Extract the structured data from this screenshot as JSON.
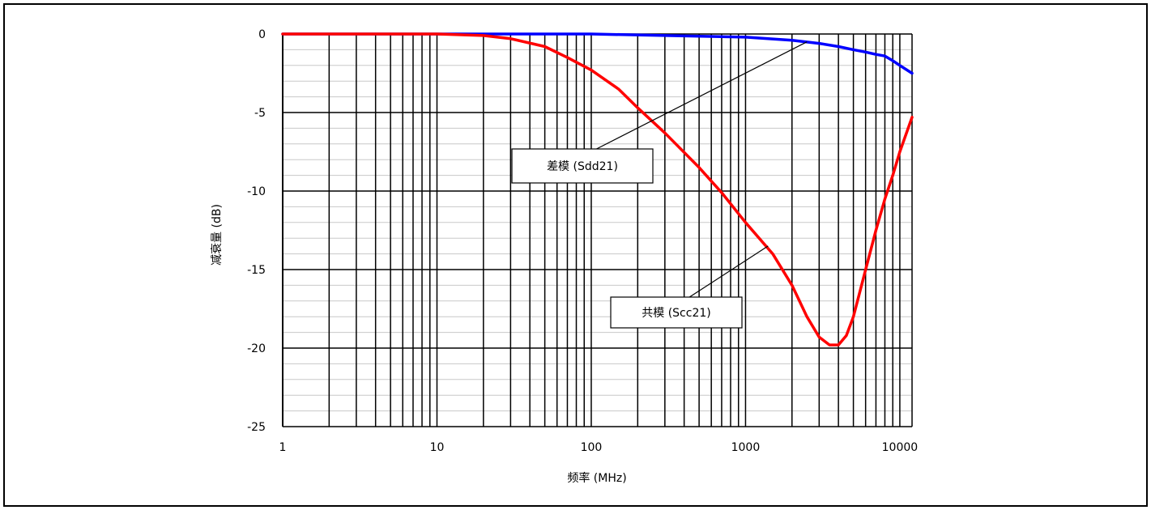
{
  "chart_data": {
    "type": "line",
    "xlabel": "频率 (MHz)",
    "ylabel": "减衰量 (dB)",
    "x_scale": "log",
    "xlim": [
      1,
      12000
    ],
    "ylim": [
      -25,
      0
    ],
    "x_tick_labels": [
      "1",
      "10",
      "100",
      "1000",
      "10000"
    ],
    "y_tick_labels": [
      "0",
      "-5",
      "-10",
      "-15",
      "-20",
      "-25"
    ],
    "grid": true,
    "series": [
      {
        "name": "差模 (Sdd21)",
        "color": "#0000ff",
        "x": [
          1,
          10,
          100,
          300,
          1000,
          2000,
          3000,
          4000,
          5000,
          6000,
          7000,
          8000,
          9000,
          10000,
          12000
        ],
        "y": [
          0,
          0,
          0,
          -0.1,
          -0.2,
          -0.4,
          -0.6,
          -0.8,
          -1.0,
          -1.15,
          -1.3,
          -1.4,
          -1.7,
          -2.0,
          -2.5
        ]
      },
      {
        "name": "共模 (Scc21)",
        "color": "#ff0000",
        "x": [
          1,
          10,
          20,
          30,
          50,
          70,
          100,
          150,
          200,
          300,
          500,
          700,
          1000,
          1500,
          2000,
          2500,
          3000,
          3500,
          4000,
          4500,
          5000,
          6000,
          7000,
          8000,
          9000,
          10000,
          12000
        ],
        "y": [
          0,
          0,
          -0.1,
          -0.3,
          -0.8,
          -1.5,
          -2.3,
          -3.5,
          -4.7,
          -6.3,
          -8.5,
          -10.1,
          -12.0,
          -14.0,
          -16.0,
          -18.0,
          -19.3,
          -19.8,
          -19.8,
          -19.2,
          -18.0,
          -15.0,
          -12.5,
          -10.5,
          -9.0,
          -7.5,
          -5.3
        ]
      }
    ],
    "annotations": [
      {
        "text": "差模 (Sdd21)",
        "series": "差模 (Sdd21)",
        "x_point": 2500,
        "y_point": -0.5
      },
      {
        "text": "共模 (Scc21)",
        "series": "共模 (Scc21)",
        "x_point": 1400,
        "y_point": -13.5
      }
    ]
  }
}
